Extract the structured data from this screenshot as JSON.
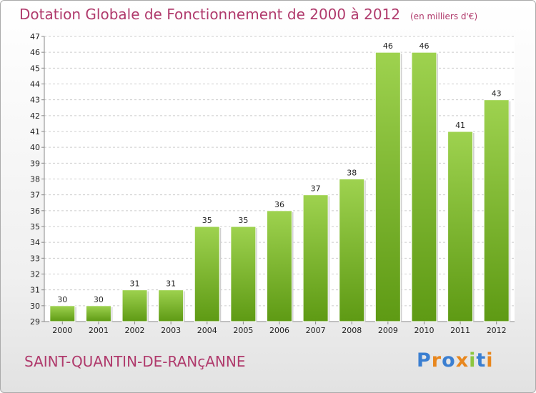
{
  "title": "Dotation Globale de Fonctionnement de 2000 à 2012",
  "unit": "(en milliers d'€)",
  "commune": "SAINT-QUANTIN-DE-RANçANNE",
  "logo": {
    "text": "Proxiti",
    "letter_colors": [
      "#3b7fd1",
      "#e8871e",
      "#3b7fd1",
      "#e8871e",
      "#8cc63f",
      "#3b7fd1",
      "#e8871e"
    ]
  },
  "colors": {
    "title": "#b03a6c",
    "bar_light": "#9ed24f",
    "bar_dark": "#5e9a14",
    "grid": "#cccccc",
    "axis_text": "#222222"
  },
  "chart_data": {
    "type": "bar",
    "categories": [
      "2000",
      "2001",
      "2002",
      "2003",
      "2004",
      "2005",
      "2006",
      "2007",
      "2008",
      "2009",
      "2010",
      "2011",
      "2012"
    ],
    "values": [
      30,
      30,
      31,
      31,
      35,
      35,
      36,
      37,
      38,
      46,
      46,
      41,
      43
    ],
    "ylim": [
      29,
      47
    ],
    "yticks": [
      29,
      30,
      31,
      32,
      33,
      34,
      35,
      36,
      37,
      38,
      39,
      40,
      41,
      42,
      43,
      44,
      45,
      46,
      47
    ],
    "grid": true,
    "data_labels": true
  }
}
